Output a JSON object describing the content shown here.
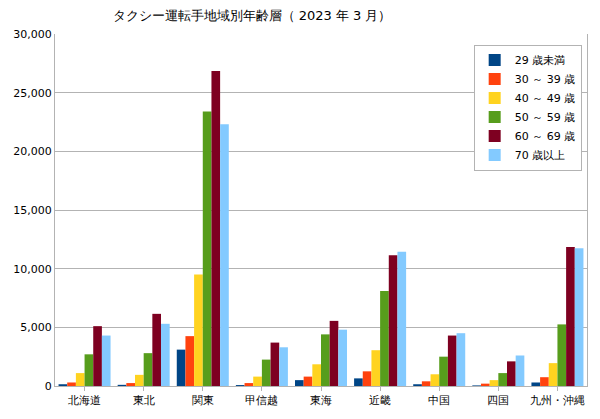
{
  "chart_data": {
    "type": "bar",
    "title": "タクシー運転手地域別年齢層（ 2023 年 3 月）",
    "categories": [
      "北海道",
      "東北",
      "関東",
      "甲信越",
      "東海",
      "近畿",
      "中国",
      "四国",
      "九州・沖縄"
    ],
    "series": [
      {
        "name": "29 歳未満",
        "color": "#004586",
        "values": [
          150,
          100,
          3100,
          80,
          500,
          650,
          150,
          50,
          300
        ]
      },
      {
        "name": "30 ～ 39 歳",
        "color": "#ff420e",
        "values": [
          300,
          250,
          4250,
          250,
          800,
          1250,
          400,
          200,
          750
        ]
      },
      {
        "name": "40 ～ 49 歳",
        "color": "#ffd320",
        "values": [
          1100,
          950,
          9500,
          800,
          1850,
          3050,
          1000,
          500,
          1950
        ]
      },
      {
        "name": "50 ～ 59 歳",
        "color": "#579d1c",
        "values": [
          2700,
          2800,
          23400,
          2250,
          4400,
          8100,
          2500,
          1100,
          5250
        ]
      },
      {
        "name": "60 ～ 69 歳",
        "color": "#7e0021",
        "values": [
          5100,
          6150,
          26850,
          3700,
          5550,
          11150,
          4300,
          2100,
          11850
        ]
      },
      {
        "name": "70 歳以上",
        "color": "#83caff",
        "values": [
          4300,
          5300,
          22300,
          3300,
          4800,
          11450,
          4500,
          2600,
          11750
        ]
      }
    ],
    "ylim": [
      0,
      30000
    ],
    "yticks": [
      0,
      {
        "value": 5000,
        "label": "5,000"
      },
      {
        "value": 10000,
        "label": "10,000"
      },
      {
        "value": 15000,
        "label": "15,000"
      },
      {
        "value": 20000,
        "label": "20,000"
      },
      {
        "value": 25000,
        "label": "25,000"
      },
      {
        "value": 30000,
        "label": "30,000"
      }
    ],
    "grid": true,
    "legend": "upper right"
  }
}
